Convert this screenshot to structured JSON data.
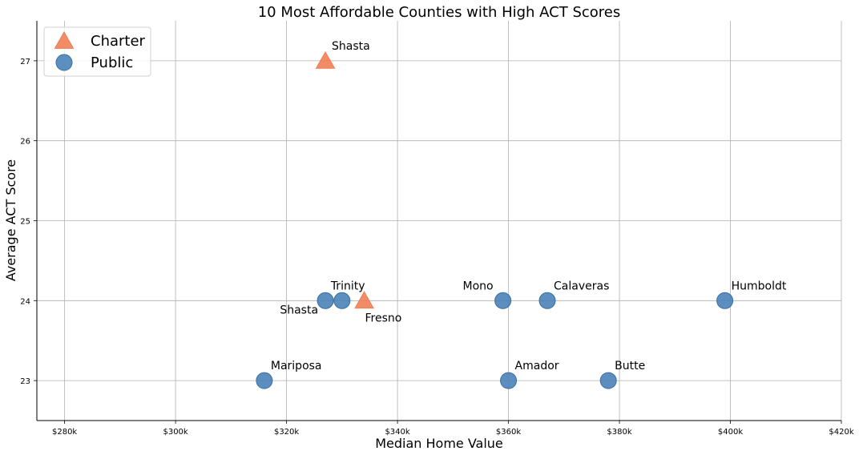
{
  "chart_data": {
    "type": "scatter",
    "title": "10 Most Affordable Counties with High ACT Scores",
    "xlabel": "Median Home Value",
    "ylabel": "Average ACT Score",
    "xlim": [
      275000,
      420000
    ],
    "ylim": [
      22.5,
      27.5
    ],
    "x_ticks": [
      280000,
      300000,
      320000,
      340000,
      360000,
      380000,
      400000,
      420000
    ],
    "x_tick_labels": [
      "$280k",
      "$300k",
      "$320k",
      "$340k",
      "$360k",
      "$380k",
      "$400k",
      "$420k"
    ],
    "y_ticks": [
      23,
      24,
      25,
      26,
      27
    ],
    "y_tick_labels": [
      "23",
      "24",
      "25",
      "26",
      "27"
    ],
    "grid": true,
    "legend_position": "upper-left",
    "series": [
      {
        "name": "Charter",
        "marker": "triangle",
        "color": "#f07f56",
        "points": [
          {
            "label": "Shasta",
            "x": 327000,
            "y": 27,
            "label_pos": "above-right"
          },
          {
            "label": "Fresno",
            "x": 334000,
            "y": 24,
            "label_pos": "below-right"
          }
        ]
      },
      {
        "name": "Public",
        "marker": "circle",
        "color": "#4a83b8",
        "points": [
          {
            "label": "Shasta",
            "x": 327000,
            "y": 24,
            "label_pos": "below-left"
          },
          {
            "label": "Trinity",
            "x": 330000,
            "y": 24,
            "label_pos": "above-left"
          },
          {
            "label": "Mono",
            "x": 359000,
            "y": 24,
            "label_pos": "above-left"
          },
          {
            "label": "Calaveras",
            "x": 367000,
            "y": 24,
            "label_pos": "above-right"
          },
          {
            "label": "Humboldt",
            "x": 399000,
            "y": 24,
            "label_pos": "above-right"
          },
          {
            "label": "Mariposa",
            "x": 316000,
            "y": 23,
            "label_pos": "above-right"
          },
          {
            "label": "Amador",
            "x": 360000,
            "y": 23,
            "label_pos": "above-right"
          },
          {
            "label": "Butte",
            "x": 378000,
            "y": 23,
            "label_pos": "above-right"
          }
        ]
      }
    ]
  }
}
